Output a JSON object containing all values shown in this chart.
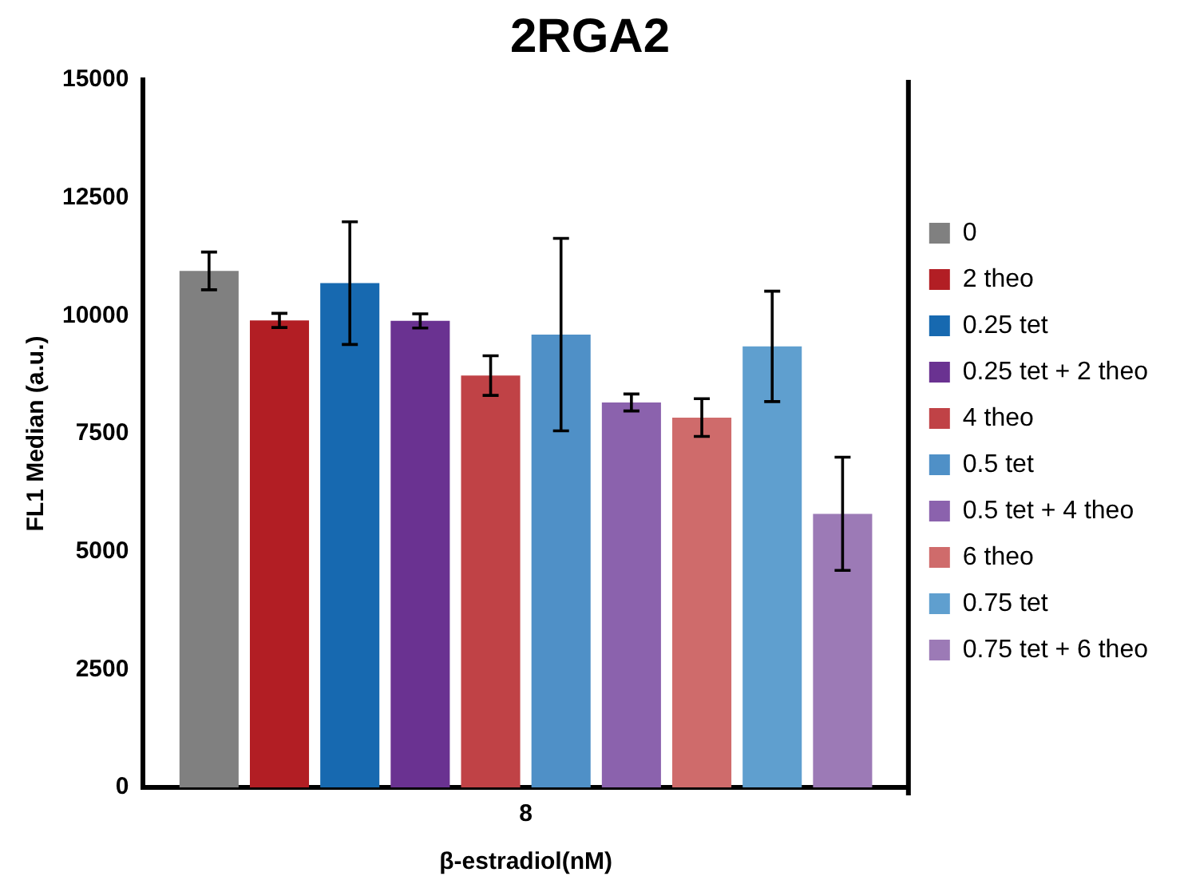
{
  "chart_data": {
    "type": "bar",
    "title": "2RGA2",
    "xlabel": "β-estradiol(nM)",
    "ylabel": "FL1 Median (a.u.)",
    "categories": [
      "8"
    ],
    "series": [
      {
        "name": "0",
        "color": "#808080",
        "values": [
          10950
        ],
        "errors": [
          400
        ]
      },
      {
        "name": "2 theo",
        "color": "#b21e24",
        "values": [
          9900
        ],
        "errors": [
          150
        ]
      },
      {
        "name": "0.25 tet",
        "color": "#1769b0",
        "values": [
          10690
        ],
        "errors": [
          1300
        ]
      },
      {
        "name": "0.25 tet + 2 theo",
        "color": "#6a3291",
        "values": [
          9890
        ],
        "errors": [
          150
        ]
      },
      {
        "name": "4 theo",
        "color": "#c04246",
        "values": [
          8730
        ],
        "errors": [
          420
        ]
      },
      {
        "name": "0.5 tet",
        "color": "#4f90c7",
        "values": [
          9600
        ],
        "errors": [
          2040
        ]
      },
      {
        "name": "0.5 tet + 4 theo",
        "color": "#8b62ad",
        "values": [
          8160
        ],
        "errors": [
          180
        ]
      },
      {
        "name": "6 theo",
        "color": "#cf6b6b",
        "values": [
          7840
        ],
        "errors": [
          400
        ]
      },
      {
        "name": "0.75 tet",
        "color": "#5f9fcf",
        "values": [
          9350
        ],
        "errors": [
          1170
        ]
      },
      {
        "name": "0.75 tet + 6 theo",
        "color": "#9c7ab6",
        "values": [
          5800
        ],
        "errors": [
          1200
        ]
      }
    ],
    "ylim": [
      0,
      15000
    ],
    "yticks": [
      0,
      2500,
      5000,
      7500,
      10000,
      12500,
      15000
    ],
    "grid": false,
    "legend": "right"
  }
}
